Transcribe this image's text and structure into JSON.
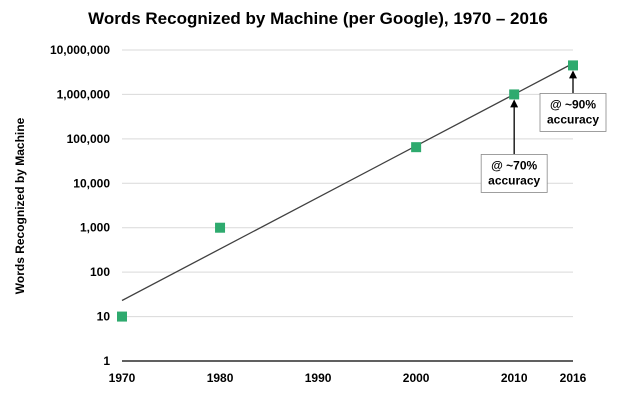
{
  "chart_data": {
    "type": "scatter",
    "title": "Words Recognized by Machine (per Google), 1970 – 2016",
    "xlabel": "",
    "ylabel": "Words Recognized by Machine",
    "y_scale": "log",
    "xlim": [
      1970,
      2016
    ],
    "ylim": [
      1,
      10000000
    ],
    "grid": true,
    "x_ticks": [
      1970,
      1980,
      1990,
      2000,
      2010,
      2016
    ],
    "x_tick_labels": [
      "1970",
      "1980",
      "1990",
      "2000",
      "2010",
      "2016"
    ],
    "y_ticks": [
      1,
      10,
      100,
      1000,
      10000,
      100000,
      1000000,
      10000000
    ],
    "y_tick_labels": [
      "1",
      "10",
      "100",
      "1,000",
      "10,000",
      "100,000",
      "1,000,000",
      "10,000,000"
    ],
    "series": [
      {
        "marker_color": "#2eaa6e",
        "x": [
          1970,
          1980,
          2000,
          2010,
          2016
        ],
        "y": [
          10,
          1000,
          65000,
          1000000,
          4500000
        ]
      }
    ],
    "trendline": {
      "x": [
        1970,
        2016
      ],
      "y": [
        23,
        5000000
      ],
      "color": "#404040"
    },
    "annotations": [
      {
        "lines": [
          "@ ~70%",
          "accuracy"
        ],
        "x": 2010,
        "y": 1000000
      },
      {
        "lines": [
          "@ ~90%",
          "accuracy"
        ],
        "x": 2016,
        "y": 4500000
      }
    ]
  }
}
